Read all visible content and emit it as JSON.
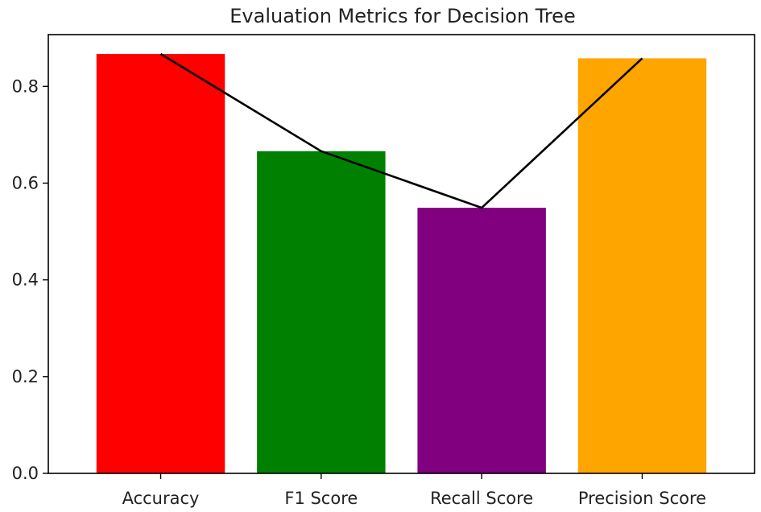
{
  "chart_data": {
    "type": "bar",
    "title": "Evaluation Metrics for Decision Tree",
    "xlabel": "",
    "ylabel": "",
    "categories": [
      "Accuracy",
      "F1 Score",
      "Recall Score",
      "Precision Score"
    ],
    "values": [
      0.867,
      0.666,
      0.549,
      0.858
    ],
    "bar_colors": [
      "#ff0000",
      "#008000",
      "#800080",
      "#ffa500"
    ],
    "overlay_line": {
      "values": [
        0.867,
        0.666,
        0.549,
        0.858
      ],
      "color": "#000000"
    },
    "ylim": [
      0,
      0.907
    ],
    "y_ticks": [
      0.0,
      0.2,
      0.4,
      0.6,
      0.8
    ],
    "y_tick_labels": [
      "0.0",
      "0.2",
      "0.4",
      "0.6",
      "0.8"
    ],
    "grid": false,
    "legend": "none"
  }
}
